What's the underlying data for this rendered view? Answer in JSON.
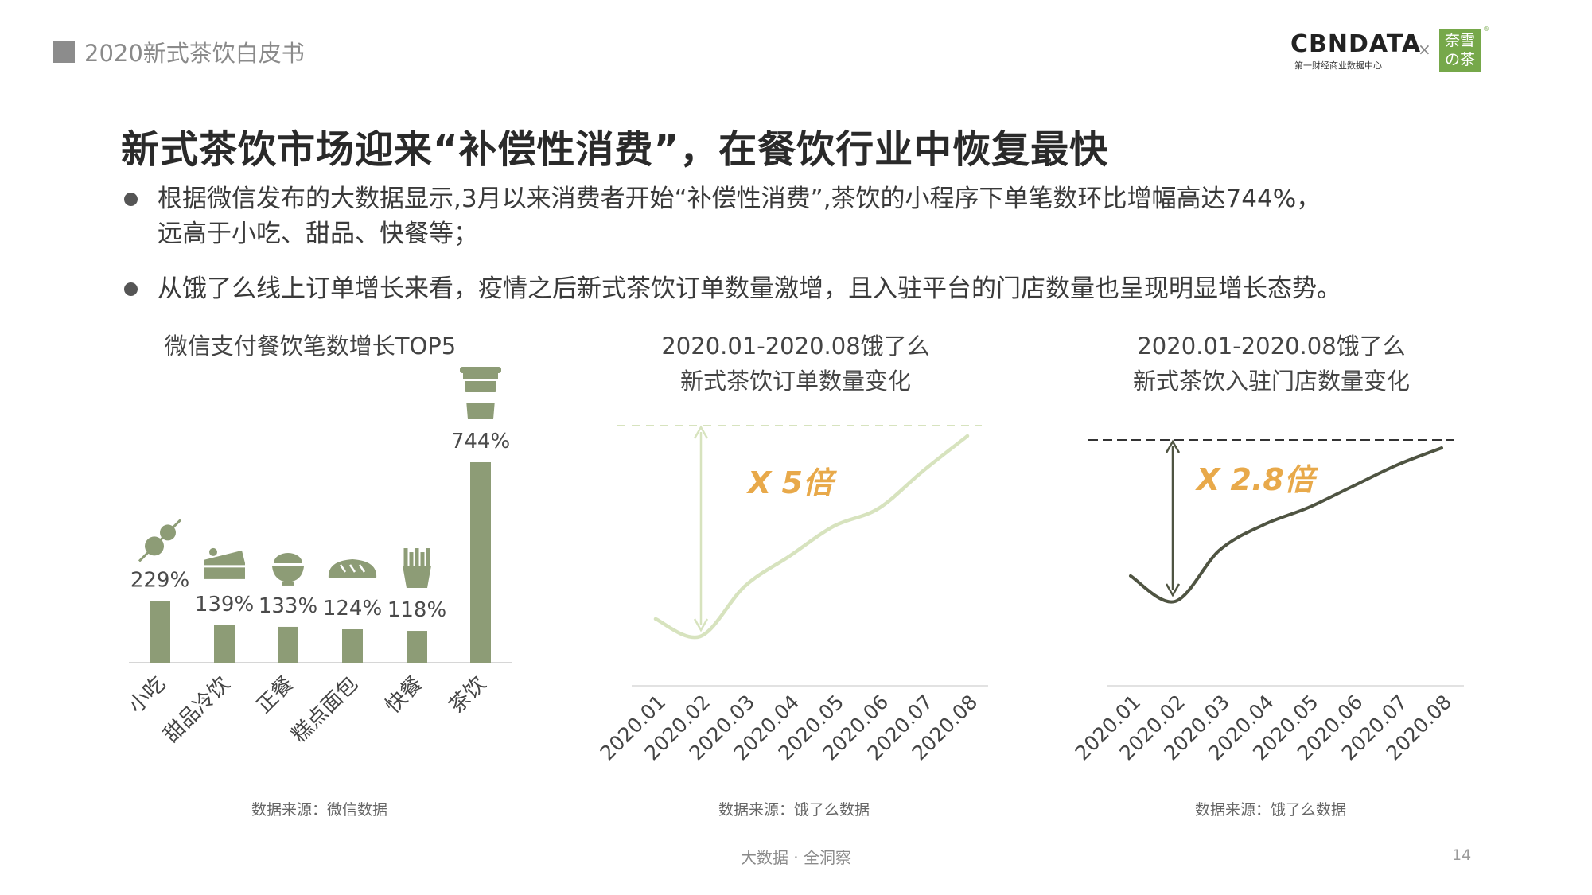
{
  "header": {
    "text": "2020新式茶饮白皮书"
  },
  "logo": {
    "brand": "CBNDATA",
    "subtitle": "第一财经商业数据中心",
    "times": "×",
    "partner_line1": "奈雪",
    "partner_line2": "の茶",
    "reg": "®"
  },
  "title": "新式茶饮市场迎来“补偿性消费”，在餐饮行业中恢复最快",
  "bullets": [
    {
      "lines": [
        "根据微信发布的大数据显示,3月以来消费者开始“补偿性消费”,茶饮的小程序下单笔数环比增幅高达744%，",
        "远高于小吃、甜品、快餐等；"
      ]
    },
    {
      "lines": [
        "从饿了么线上订单增长来看，疫情之后新式茶饮订单数量激增，且入驻平台的门店数量也呈现明显增长态势。"
      ]
    }
  ],
  "chart_data": [
    {
      "type": "bar",
      "title": "微信支付餐饮笔数增长TOP5",
      "categories": [
        "小吃",
        "甜品冷饮",
        "正餐",
        "糕点面包",
        "快餐",
        "茶饮"
      ],
      "values": [
        229,
        139,
        133,
        124,
        118,
        744
      ],
      "value_labels": [
        "229%",
        "139%",
        "133%",
        "124%",
        "118%",
        "744%"
      ],
      "icons": [
        "skewer-icon",
        "cake-icon",
        "rice-bowl-icon",
        "bread-icon",
        "fries-icon",
        "coffee-cup-icon"
      ],
      "bar_color": "#8d9c76",
      "source": "数据来源：微信数据"
    },
    {
      "type": "line",
      "title_lines": [
        "2020.01-2020.08饿了么",
        "新式茶饮订单数量变化"
      ],
      "x": [
        "2020.01",
        "2020.02",
        "2020.03",
        "2020.04",
        "2020.05",
        "2020.06",
        "2020.07",
        "2020.08"
      ],
      "values": [
        1.35,
        1.0,
        2.0,
        2.6,
        3.2,
        3.55,
        4.3,
        5.0
      ],
      "annotation": "X 5倍",
      "line_color": "#d7e3be",
      "annotation_color": "#e8a94a",
      "source": "数据来源：饿了么数据"
    },
    {
      "type": "line",
      "title_lines": [
        "2020.01-2020.08饿了么",
        "新式茶饮入驻门店数量变化"
      ],
      "x": [
        "2020.01",
        "2020.02",
        "2020.03",
        "2020.04",
        "2020.05",
        "2020.06",
        "2020.07",
        "2020.08"
      ],
      "values": [
        1.3,
        1.0,
        1.6,
        1.9,
        2.1,
        2.35,
        2.6,
        2.8
      ],
      "annotation": "X 2.8倍",
      "line_color": "#4f5442",
      "annotation_color": "#e8a94a",
      "source": "数据来源：饿了么数据"
    }
  ],
  "footer": {
    "center": "大数据 · 全洞察",
    "page": "14"
  }
}
